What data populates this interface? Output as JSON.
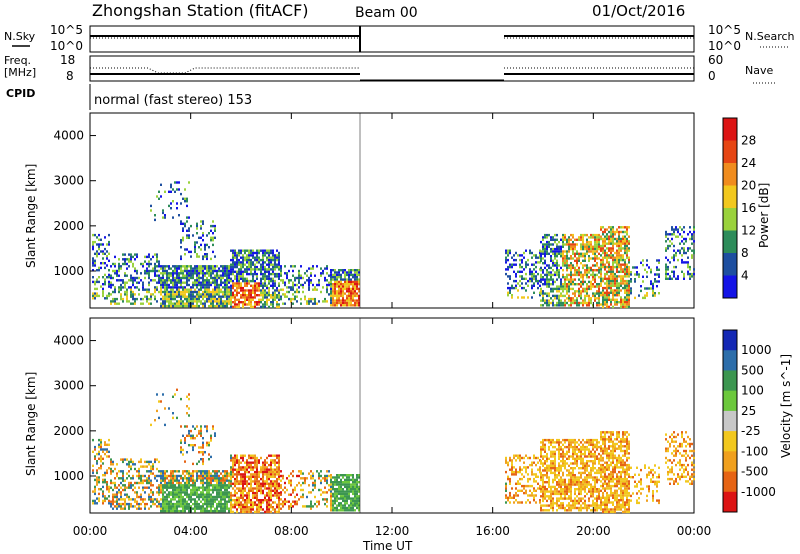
{
  "header": {
    "title": "Zhongshan Station (fitACF)",
    "beam": "Beam 00",
    "date": "01/Oct/2016"
  },
  "panels": {
    "nsky": {
      "left_label": "N.Sky",
      "right_label": "N.Search",
      "left_ticks": [
        "10^5",
        "10^0"
      ],
      "right_ticks": [
        "10^5",
        "10^0"
      ]
    },
    "freq": {
      "left_label": "Freq.",
      "left_unit": "[MHz]",
      "right_label": "Nave",
      "left_ticks": [
        "18",
        "8"
      ],
      "right_ticks": [
        "60",
        "0"
      ]
    },
    "cpid": {
      "label": "CPID",
      "text": "normal (fast stereo) 153"
    }
  },
  "chart_data": [
    {
      "type": "heatmap",
      "name": "power",
      "ylabel": "Slant Range [km]",
      "yticks": [
        "1000",
        "2000",
        "3000",
        "4000"
      ],
      "ylim": [
        180,
        4500
      ],
      "xlim": [
        0,
        24
      ],
      "colorbar_label": "Power [dB]",
      "colorbar_ticks": [
        "4",
        "8",
        "12",
        "16",
        "20",
        "24",
        "28"
      ],
      "colors": [
        "#1414e6",
        "#1e4fa0",
        "#2d8c5a",
        "#9ad23c",
        "#f2c81e",
        "#f08c1e",
        "#e64614",
        "#dc1414"
      ]
    },
    {
      "type": "heatmap",
      "name": "velocity",
      "ylabel": "Slant Range [km]",
      "yticks": [
        "1000",
        "2000",
        "3000",
        "4000"
      ],
      "ylim": [
        180,
        4500
      ],
      "xlim": [
        0,
        24
      ],
      "colorbar_label": "Velocity [m s^-1]",
      "colorbar_ticks": [
        "1000",
        "500",
        "100",
        "25",
        "-25",
        "-100",
        "-500",
        "-1000"
      ],
      "colors": [
        "#1428b4",
        "#2d6eaa",
        "#3c9650",
        "#6cc83c",
        "#c8c8c8",
        "#f2c81e",
        "#f0a01e",
        "#e66414",
        "#dc1414"
      ]
    }
  ],
  "xaxis": {
    "label": "Time UT",
    "ticks": [
      "00:00",
      "04:00",
      "08:00",
      "12:00",
      "16:00",
      "20:00",
      "00:00"
    ]
  }
}
